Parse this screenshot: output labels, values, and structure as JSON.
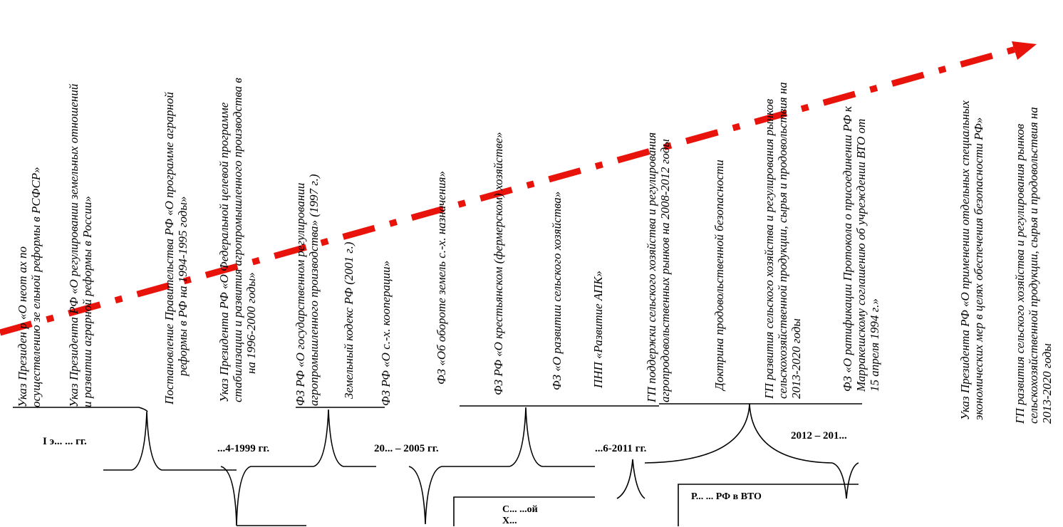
{
  "documents": [
    {
      "id": "d1",
      "line1": "Указ Президен    р «О неот         ах по",
      "line2": "осуществлению зе  ельной реформы в РСФСР»"
    },
    {
      "id": "d2",
      "line1": "Указ Президента  РФ «О регулировании земельных отношений",
      "line2": "и развитии аграрной реформы в России»"
    },
    {
      "id": "d3",
      "line1": "Постановление Правительства РФ «О программе аграрной",
      "line2": "реформы в РФ на 1994-1995 годы»"
    },
    {
      "id": "d4",
      "line1": "Указ Президента РФ «О Федеральной целевой программе",
      "line2": "стабилизации и развития агропромышленного производства в",
      "line3": "на 1996-2000 годы»"
    },
    {
      "id": "d5",
      "line1": "ФЗ РФ «О государственном регулировании",
      "line2": "агропромышленного производства» (1997 г.)"
    },
    {
      "id": "d6",
      "line1": "Земельный кодекс РФ (2001 г.)"
    },
    {
      "id": "d7",
      "line1": "ФЗ РФ «О с.-х. кооперации»"
    },
    {
      "id": "d8",
      "line1": "ФЗ «Об обороте земель с.-х. назначения»"
    },
    {
      "id": "d9",
      "line1": "ФЗ РФ «О крестьянском (фермерском) хозяйстве»"
    },
    {
      "id": "d10",
      "line1": "ФЗ «О развитии сельского хозяйства»"
    },
    {
      "id": "d11",
      "line1": "ПНП «Развитие АПК»"
    },
    {
      "id": "d12",
      "line1": "ГП поддержки сельского хозяйства и регулирования",
      "line2": "агропродовольственных рынков на 2008-2012 годы"
    },
    {
      "id": "d13",
      "line1": "Доктрина продовольственной безопасности"
    },
    {
      "id": "d14",
      "line1": "ГП развития сельского хозяйства и регулирования рынков",
      "line2": "сельскохозяйственной продукции, сырья и продовольствия на",
      "line3": "2013-2020 годы"
    },
    {
      "id": "d15",
      "line1": "ФЗ «О ратификации Протокола о присоединении РФ к",
      "line2": "Марракешскому соглашению об учреждении ВТО от",
      "line3": "15 апреля 1994 г.»"
    },
    {
      "id": "d16",
      "line1": "Указ Президента РФ «О применении отдельных специальных",
      "line2": "экономических мер в целях обеспечения безопасности РФ»"
    },
    {
      "id": "d17",
      "line1": "ГП развития сельского хозяйства и регулирования рынков",
      "line2": "сельскохозяйственной продукции, сырья и продовольствия на",
      "line3": "2013-2020 годы"
    }
  ],
  "periods": [
    {
      "id": "p1",
      "label": "I э...  ... гг."
    },
    {
      "id": "p2",
      "label": "...4-1999 гг."
    },
    {
      "id": "p3",
      "label": "20... – 2005 гг."
    },
    {
      "id": "p4",
      "label": "...6-2011 гг."
    },
    {
      "id": "p5",
      "label": "2012 – 201..."
    }
  ],
  "boxes": [
    {
      "id": "b1",
      "line1": "С...        ...ой",
      "line2": "Х..."
    },
    {
      "id": "b2",
      "line1": "Р...  ...  РФ в ВТО"
    }
  ],
  "style": {
    "trend_color": "#e8140c",
    "line_color": "#000000"
  }
}
